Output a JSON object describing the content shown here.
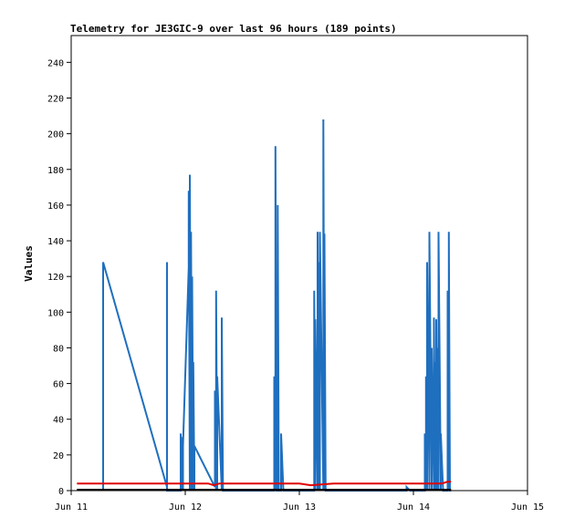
{
  "chart_data": {
    "type": "line",
    "title": "Telemetry for JE3GIC-9 over last 96 hours (189 points)",
    "xlabel": "",
    "ylabel": "Values",
    "x_tick_labels": [
      "Jun 11",
      "Jun 12",
      "Jun 13",
      "Jun 14",
      "Jun 15"
    ],
    "xlim_days": [
      0,
      4
    ],
    "ylim": [
      0,
      255
    ],
    "y_ticks": [
      0,
      20,
      40,
      60,
      80,
      100,
      120,
      140,
      160,
      180,
      200,
      220,
      240
    ],
    "grid": false,
    "legend": "none",
    "colors": {
      "axes": "#000000",
      "background": "#ffffff"
    },
    "series": [
      {
        "color": "#1f6fbf",
        "x_days": [
          0.28,
          0.28,
          0.84,
          0.84,
          0.84,
          0.96,
          0.96,
          0.97,
          0.97,
          0.98,
          0.98,
          1.03,
          1.03,
          1.04,
          1.04,
          1.05,
          1.05,
          1.06,
          1.06,
          1.07,
          1.07,
          1.08,
          1.08,
          1.26,
          1.26,
          1.27,
          1.27,
          1.28,
          1.28,
          1.32,
          1.32,
          1.33,
          1.33,
          1.34,
          1.34,
          1.35,
          1.35,
          1.4,
          1.4,
          1.41,
          1.41,
          1.42,
          1.42,
          1.43,
          1.43,
          1.44,
          1.44,
          1.45,
          1.45,
          1.47,
          1.47,
          1.48,
          1.48,
          1.49,
          1.49,
          1.5,
          1.5,
          1.51,
          1.51,
          1.52,
          1.52,
          1.53,
          1.53,
          1.54,
          1.54,
          1.55,
          1.55,
          1.56,
          1.56,
          1.57,
          1.57,
          1.58,
          1.58,
          1.59,
          1.59,
          1.6,
          1.6,
          1.62,
          1.62,
          1.66,
          1.66,
          1.78,
          1.78,
          1.79,
          1.79,
          1.8,
          1.8,
          1.81,
          1.81,
          1.82,
          1.82,
          1.84,
          1.84,
          1.86,
          1.86,
          1.88,
          1.88,
          1.89,
          1.89,
          1.9,
          1.9,
          1.91,
          1.91,
          1.92,
          1.92,
          1.93,
          1.93,
          1.94,
          1.94,
          1.95,
          1.95,
          1.96,
          1.96,
          2.0,
          2.0,
          2.05,
          2.05,
          2.13,
          2.13,
          2.14,
          2.14,
          2.16,
          2.16,
          2.17,
          2.17,
          2.18,
          2.18,
          2.21,
          2.21,
          2.22,
          2.22,
          2.23,
          2.23,
          2.24,
          2.24,
          2.25,
          2.25,
          2.87,
          2.87,
          2.91,
          2.91,
          2.94,
          2.94,
          2.97,
          2.97,
          3.0,
          3.0,
          3.05,
          3.05,
          3.08,
          3.08,
          3.1,
          3.1,
          3.11,
          3.11,
          3.12,
          3.12,
          3.14,
          3.14,
          3.16,
          3.16,
          3.18,
          3.18,
          3.19,
          3.19,
          3.2,
          3.2,
          3.21,
          3.21,
          3.22,
          3.22,
          3.24,
          3.24,
          3.26,
          3.26,
          3.28,
          3.28,
          3.3,
          3.3,
          3.31,
          3.31,
          3.32,
          3.32,
          3.33,
          3.33
        ],
        "values": [
          0,
          128,
          2,
          128,
          0,
          0,
          32,
          0,
          30,
          0,
          25,
          125,
          168,
          0,
          177,
          0,
          145,
          0,
          120,
          0,
          72,
          0,
          25,
          2,
          56,
          0,
          112,
          0,
          64,
          0,
          97,
          0,
          0,
          0,
          0,
          0,
          0,
          0,
          0,
          0,
          0,
          0,
          0,
          0,
          0,
          0,
          0,
          0,
          0,
          0,
          0,
          0,
          0,
          0,
          0,
          0,
          0,
          0,
          0,
          0,
          0,
          0,
          0,
          0,
          0,
          0,
          0,
          0,
          0,
          0,
          0,
          0,
          0,
          0,
          0,
          0,
          0,
          0,
          0,
          0,
          0,
          0,
          64,
          0,
          193,
          0,
          0,
          0,
          160,
          0,
          0,
          0,
          32,
          0,
          0,
          0,
          0,
          0,
          0,
          0,
          0,
          0,
          0,
          0,
          0,
          0,
          0,
          0,
          0,
          0,
          0,
          0,
          0,
          0,
          0,
          0,
          0,
          0,
          112,
          0,
          96,
          0,
          145,
          0,
          128,
          0,
          145,
          0,
          208,
          0,
          144,
          0,
          0,
          0,
          0,
          0,
          0,
          0,
          0,
          0,
          0,
          0,
          2,
          0,
          0,
          0,
          0,
          0,
          0,
          0,
          0,
          0,
          32,
          0,
          64,
          0,
          128,
          0,
          145,
          0,
          80,
          0,
          97,
          0,
          72,
          0,
          96,
          0,
          80,
          0,
          145,
          0,
          32,
          0,
          0,
          0,
          0,
          0,
          112,
          0,
          145,
          0,
          0,
          0,
          0
        ]
      },
      {
        "color": "#e00000",
        "x_days": [
          0.05,
          0.4,
          1.0,
          1.2,
          1.25,
          1.3,
          1.4,
          1.6,
          1.9,
          2.0,
          2.1,
          2.3,
          2.6,
          2.9,
          3.0,
          3.1,
          3.2,
          3.25,
          3.3,
          3.33
        ],
        "values": [
          4,
          4,
          4,
          4,
          3,
          4,
          4,
          4,
          4,
          4,
          3,
          4,
          4,
          4,
          4,
          4,
          4,
          4,
          5,
          5
        ]
      },
      {
        "color": "#000000",
        "x_days": [
          0.05,
          3.33
        ],
        "values": [
          0.5,
          0.5
        ]
      }
    ]
  }
}
